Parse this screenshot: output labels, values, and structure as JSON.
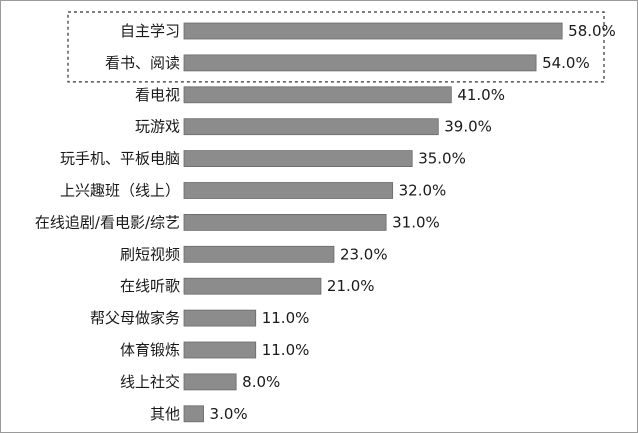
{
  "chart_data": {
    "type": "bar",
    "orientation": "horizontal",
    "categories": [
      "自主学习",
      "看书、阅读",
      "看电视",
      "玩游戏",
      "玩手机、平板电脑",
      "上兴趣班（线上）",
      "在线追剧/看电影/综艺",
      "刷短视频",
      "在线听歌",
      "帮父母做家务",
      "体育锻炼",
      "线上社交",
      "其他"
    ],
    "values": [
      58.0,
      54.0,
      41.0,
      39.0,
      35.0,
      32.0,
      31.0,
      23.0,
      21.0,
      11.0,
      11.0,
      8.0,
      3.0
    ],
    "value_labels": [
      "58.0%",
      "54.0%",
      "41.0%",
      "39.0%",
      "35.0%",
      "32.0%",
      "31.0%",
      "23.0%",
      "21.0%",
      "11.0%",
      "11.0%",
      "8.0%",
      "3.0%"
    ],
    "xlim": [
      0,
      60
    ],
    "highlighted_categories": [
      "自主学习",
      "看书、阅读"
    ],
    "grid": false,
    "bar_color": "#8c8c8c",
    "highlight_border_color": "#333333"
  }
}
